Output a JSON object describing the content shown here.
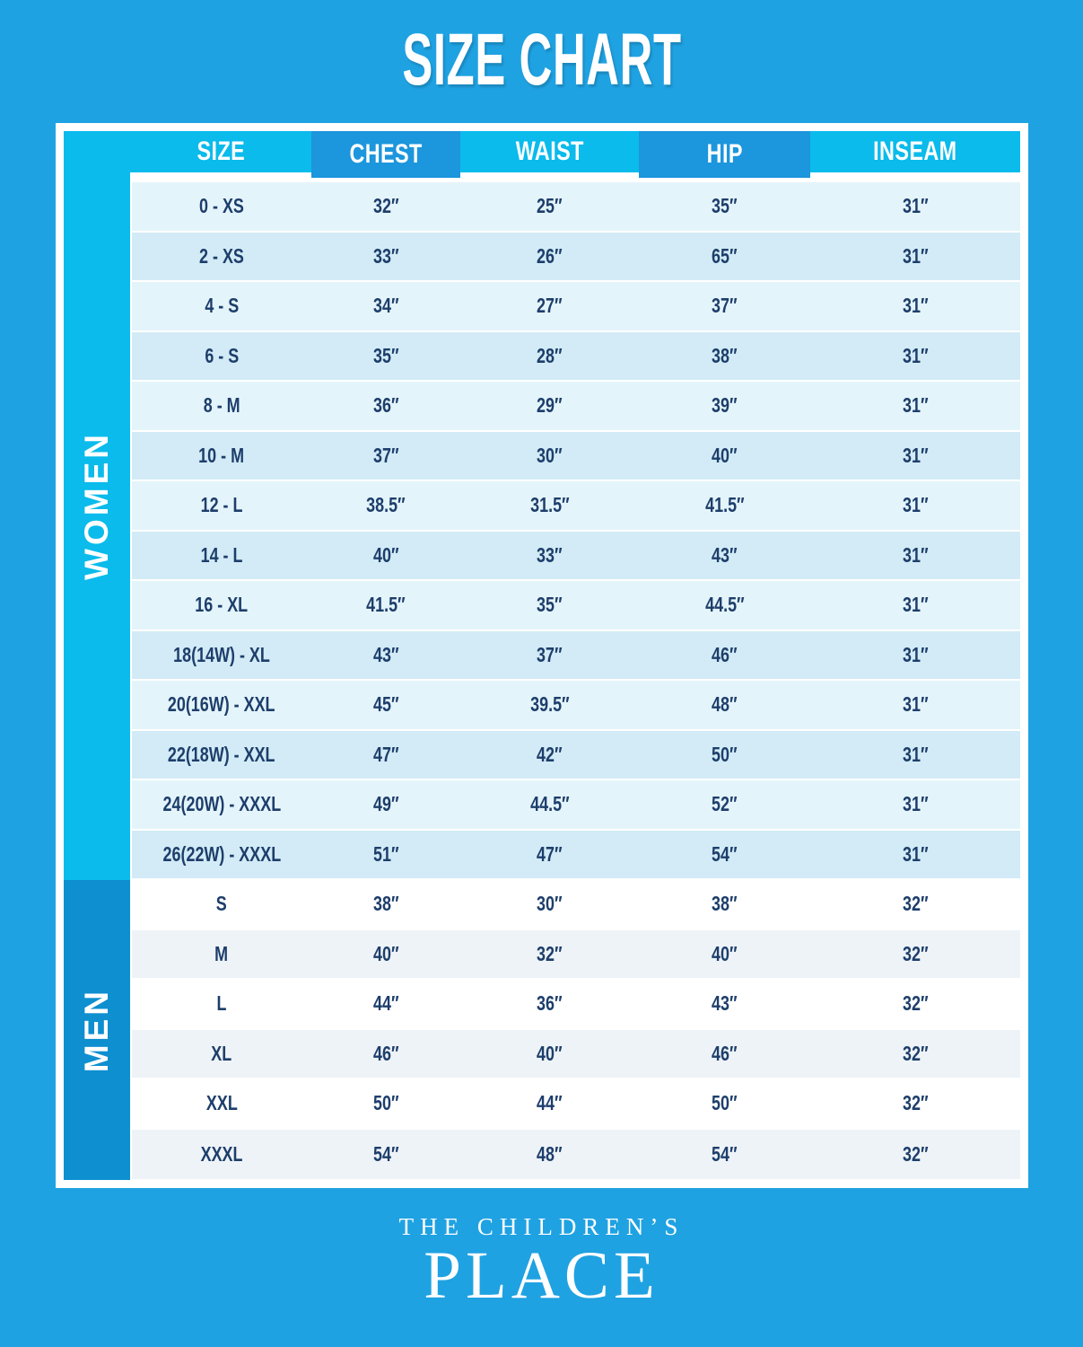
{
  "title": "SIZE CHART",
  "chart_data": {
    "type": "table",
    "title": "SIZE CHART",
    "columns": [
      "SIZE",
      "CHEST",
      "WAIST",
      "HIP",
      "INSEAM"
    ],
    "sections": [
      {
        "group": "WOMEN",
        "rows": [
          [
            "0 - XS",
            "32″",
            "25″",
            "35″",
            "31″"
          ],
          [
            "2 - XS",
            "33″",
            "26″",
            "65″",
            "31″"
          ],
          [
            "4 - S",
            "34″",
            "27″",
            "37″",
            "31″"
          ],
          [
            "6 - S",
            "35″",
            "28″",
            "38″",
            "31″"
          ],
          [
            "8 - M",
            "36″",
            "29″",
            "39″",
            "31″"
          ],
          [
            "10 - M",
            "37″",
            "30″",
            "40″",
            "31″"
          ],
          [
            "12 - L",
            "38.5″",
            "31.5″",
            "41.5″",
            "31″"
          ],
          [
            "14 - L",
            "40″",
            "33″",
            "43″",
            "31″"
          ],
          [
            "16 - XL",
            "41.5″",
            "35″",
            "44.5″",
            "31″"
          ],
          [
            "18(14W) - XL",
            "43″",
            "37″",
            "46″",
            "31″"
          ],
          [
            "20(16W) - XXL",
            "45″",
            "39.5″",
            "48″",
            "31″"
          ],
          [
            "22(18W) - XXL",
            "47″",
            "42″",
            "50″",
            "31″"
          ],
          [
            "24(20W) - XXXL",
            "49″",
            "44.5″",
            "52″",
            "31″"
          ],
          [
            "26(22W) - XXXL",
            "51″",
            "47″",
            "54″",
            "31″"
          ]
        ]
      },
      {
        "group": "MEN",
        "rows": [
          [
            "S",
            "38″",
            "30″",
            "38″",
            "32″"
          ],
          [
            "M",
            "40″",
            "32″",
            "40″",
            "32″"
          ],
          [
            "L",
            "44″",
            "36″",
            "43″",
            "32″"
          ],
          [
            "XL",
            "46″",
            "40″",
            "46″",
            "32″"
          ],
          [
            "XXL",
            "50″",
            "44″",
            "50″",
            "32″"
          ],
          [
            "XXXL",
            "54″",
            "48″",
            "54″",
            "32″"
          ]
        ]
      }
    ]
  },
  "footer": {
    "brand_top": "THE CHILDREN’S",
    "brand_bottom": "PLACE"
  },
  "colors": {
    "background": "#1FA2E2",
    "accent_cyan": "#0ABBEC",
    "accent_dark_blue": "#1C96DC",
    "men_strip_blue": "#0E8FD0",
    "row_light": "#E4F4FB",
    "row_shaded": "#D2EBF6",
    "men_row_shaded": "#EEF3F7",
    "text_navy": "#1D3E6B",
    "frame_white": "#FFFFFF"
  }
}
